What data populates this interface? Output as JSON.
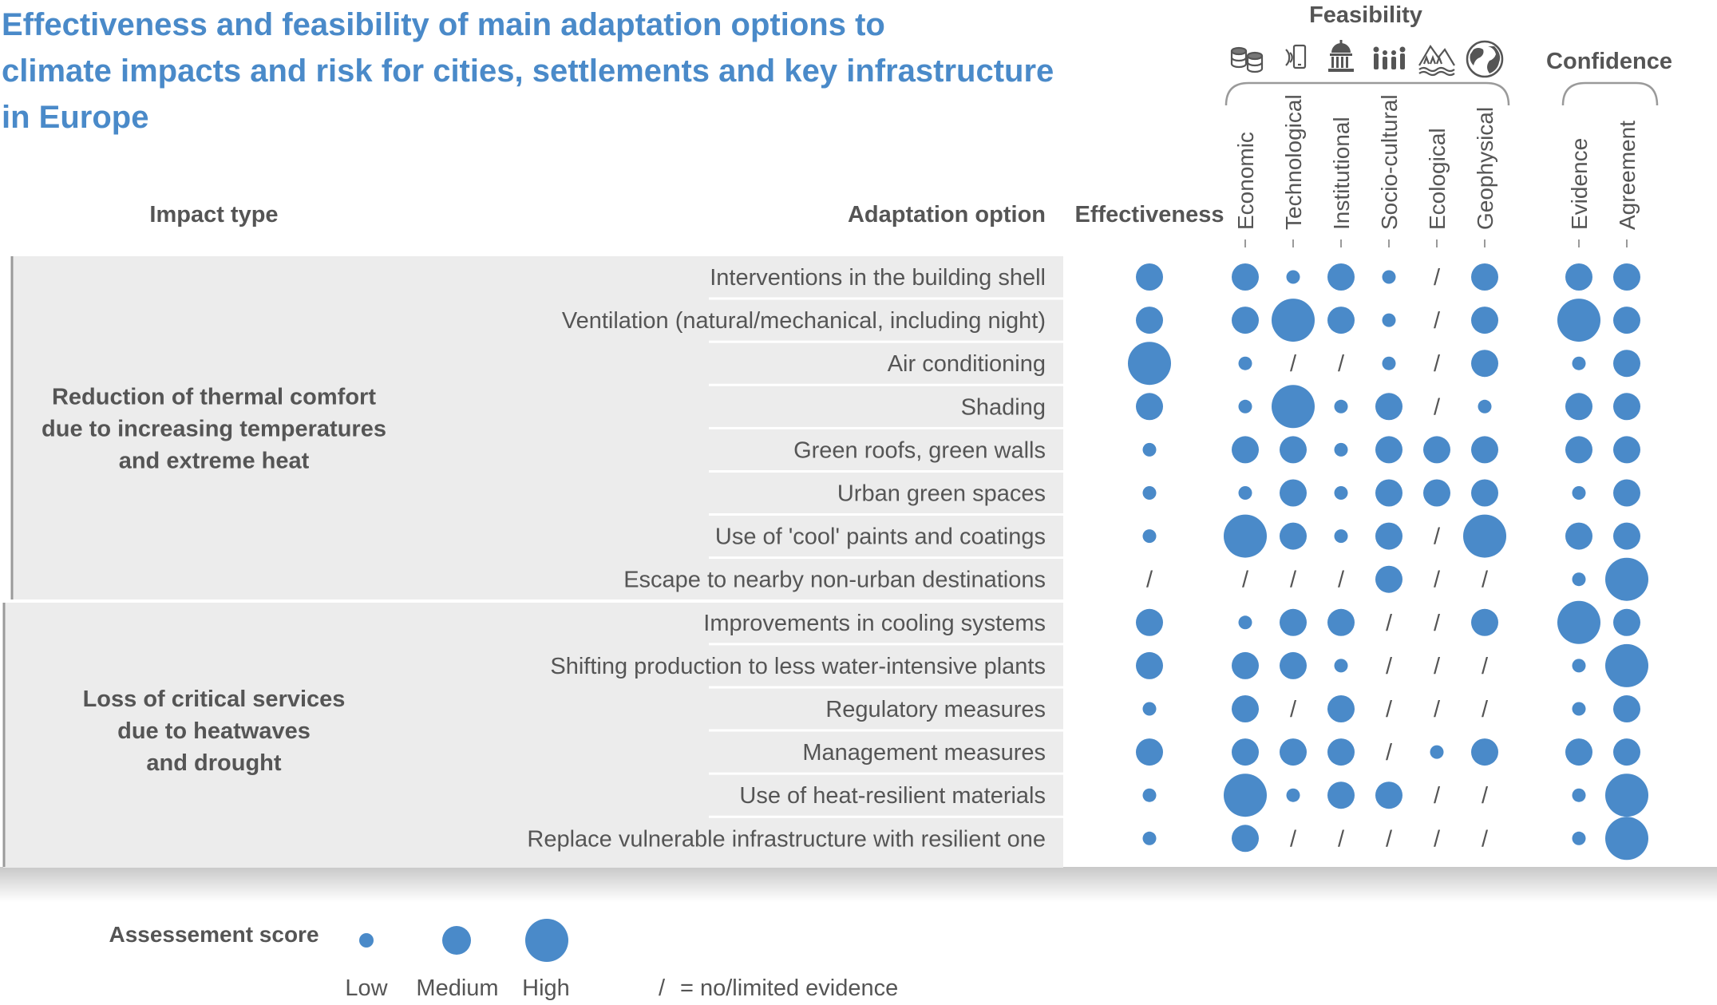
{
  "title_lines": [
    "Effectiveness and feasibility of main adaptation options to",
    "climate impacts and risk for cities, settlements and key infrastructure",
    "in Europe"
  ],
  "headers": {
    "impact_type": "Impact type",
    "adaptation_option": "Adaptation option",
    "effectiveness": "Effectiveness",
    "feasibility": "Feasibility",
    "confidence": "Confidence"
  },
  "feasibility_columns": [
    {
      "label": "Economic",
      "icon": "coins-icon"
    },
    {
      "label": "Technological",
      "icon": "phone-signal-icon"
    },
    {
      "label": "Institutional",
      "icon": "institution-building-icon"
    },
    {
      "label": "Socio-cultural",
      "icon": "people-icon"
    },
    {
      "label": "Ecological",
      "icon": "mountain-trees-icon"
    },
    {
      "label": "Geophysical",
      "icon": "globe-icon"
    }
  ],
  "confidence_columns": [
    "Evidence",
    "Agreement"
  ],
  "legend": {
    "title": "Assessement score",
    "levels": [
      "Low",
      "Medium",
      "High"
    ],
    "na_symbol": "/",
    "na_text": "= no/limited evidence"
  },
  "colors": {
    "accent": "#4a8ac9",
    "dot": "#4a8ac9",
    "panel": "#ececec",
    "header_text": "#555555",
    "body_text": "#555555"
  },
  "chart_data": {
    "type": "table",
    "score_scale": {
      "1": "Low",
      "2": "Medium",
      "3": "High",
      "0": "no/limited evidence"
    },
    "columns": [
      "Effectiveness",
      "Economic",
      "Technological",
      "Institutional",
      "Socio-cultural",
      "Ecological",
      "Geophysical",
      "Evidence",
      "Agreement"
    ],
    "groups": [
      {
        "impact_type": [
          "Reduction of thermal comfort",
          "due to increasing temperatures",
          "and extreme heat"
        ],
        "rows": [
          {
            "option": "Interventions in the building shell",
            "scores": [
              2,
              2,
              1,
              2,
              1,
              0,
              2,
              2,
              2
            ]
          },
          {
            "option": "Ventilation (natural/mechanical, including night)",
            "scores": [
              2,
              2,
              3,
              2,
              1,
              0,
              2,
              3,
              2
            ]
          },
          {
            "option": "Air conditioning",
            "scores": [
              3,
              1,
              0,
              0,
              1,
              0,
              2,
              1,
              2
            ]
          },
          {
            "option": "Shading",
            "scores": [
              2,
              1,
              3,
              1,
              2,
              0,
              1,
              2,
              2
            ]
          },
          {
            "option": "Green roofs, green walls",
            "scores": [
              1,
              2,
              2,
              1,
              2,
              2,
              2,
              2,
              2
            ]
          },
          {
            "option": "Urban green spaces",
            "scores": [
              1,
              1,
              2,
              1,
              2,
              2,
              2,
              1,
              2
            ]
          },
          {
            "option": "Use of 'cool' paints and coatings",
            "scores": [
              1,
              3,
              2,
              1,
              2,
              0,
              3,
              2,
              2
            ]
          },
          {
            "option": "Escape to nearby non-urban destinations",
            "scores": [
              0,
              0,
              0,
              0,
              2,
              0,
              0,
              1,
              3
            ]
          }
        ]
      },
      {
        "impact_type": [
          "Loss of critical services",
          "due to heatwaves",
          "and drought"
        ],
        "rows": [
          {
            "option": "Improvements in cooling systems",
            "scores": [
              2,
              1,
              2,
              2,
              0,
              0,
              2,
              3,
              2
            ]
          },
          {
            "option": "Shifting production to less water-intensive plants",
            "scores": [
              2,
              2,
              2,
              1,
              0,
              0,
              0,
              1,
              3
            ]
          },
          {
            "option": "Regulatory measures",
            "scores": [
              1,
              2,
              0,
              2,
              0,
              0,
              0,
              1,
              2
            ]
          },
          {
            "option": "Management measures",
            "scores": [
              2,
              2,
              2,
              2,
              0,
              1,
              2,
              2,
              2
            ]
          },
          {
            "option": "Use of heat-resilient materials",
            "scores": [
              1,
              3,
              1,
              2,
              2,
              0,
              0,
              1,
              3
            ]
          },
          {
            "option": "Replace vulnerable infrastructure with resilient one",
            "scores": [
              1,
              2,
              0,
              0,
              0,
              0,
              0,
              1,
              3
            ]
          }
        ]
      }
    ]
  }
}
